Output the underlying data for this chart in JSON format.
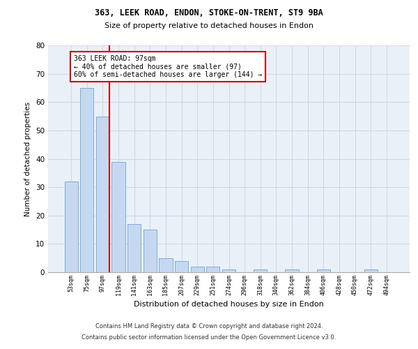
{
  "title1": "363, LEEK ROAD, ENDON, STOKE-ON-TRENT, ST9 9BA",
  "title2": "Size of property relative to detached houses in Endon",
  "xlabel": "Distribution of detached houses by size in Endon",
  "ylabel": "Number of detached properties",
  "categories": [
    "53sqm",
    "75sqm",
    "97sqm",
    "119sqm",
    "141sqm",
    "163sqm",
    "185sqm",
    "207sqm",
    "229sqm",
    "251sqm",
    "274sqm",
    "296sqm",
    "318sqm",
    "340sqm",
    "362sqm",
    "384sqm",
    "406sqm",
    "428sqm",
    "450sqm",
    "472sqm",
    "494sqm"
  ],
  "values": [
    32,
    65,
    55,
    39,
    17,
    15,
    5,
    4,
    2,
    2,
    1,
    0,
    1,
    0,
    1,
    0,
    1,
    0,
    0,
    1,
    0
  ],
  "bar_color": "#c5d8f0",
  "bar_edge_color": "#7bafd4",
  "highlight_line_color": "#cc0000",
  "annotation_line1": "363 LEEK ROAD: 97sqm",
  "annotation_line2": "← 40% of detached houses are smaller (97)",
  "annotation_line3": "60% of semi-detached houses are larger (144) →",
  "annotation_box_color": "#ffffff",
  "annotation_box_edge_color": "#cc0000",
  "ylim_max": 80,
  "yticks": [
    0,
    10,
    20,
    30,
    40,
    50,
    60,
    70,
    80
  ],
  "grid_color": "#d0d8e8",
  "bg_color": "#eaf0f8",
  "footer_line1": "Contains HM Land Registry data © Crown copyright and database right 2024.",
  "footer_line2": "Contains public sector information licensed under the Open Government Licence v3.0."
}
